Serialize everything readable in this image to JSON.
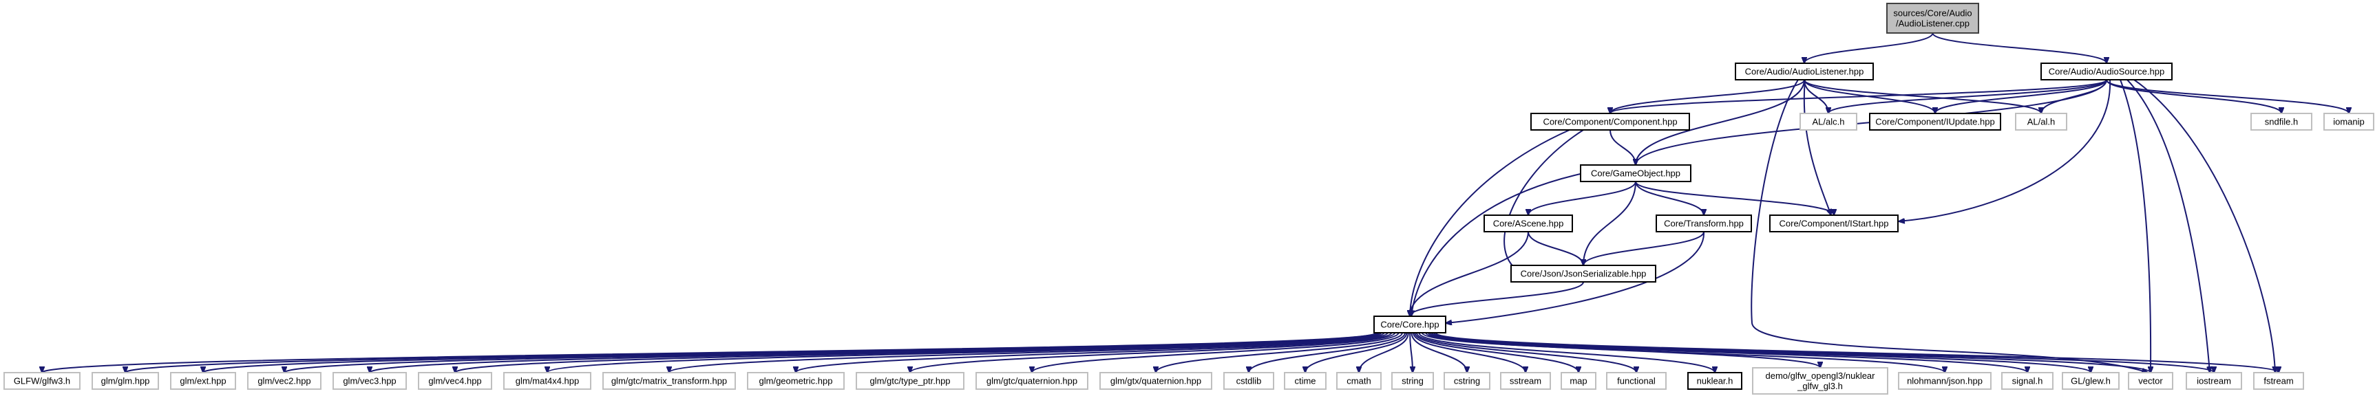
{
  "graph": {
    "nodes": [
      {
        "id": "root",
        "lines": [
          "sources/Core/Audio",
          "/AudioListener.cpp"
        ],
        "style": "root"
      },
      {
        "id": "listener_hpp",
        "lines": [
          "Core/Audio/AudioListener.hpp"
        ],
        "style": "linked"
      },
      {
        "id": "source_hpp",
        "lines": [
          "Core/Audio/AudioSource.hpp"
        ],
        "style": "linked"
      },
      {
        "id": "component_hpp",
        "lines": [
          "Core/Component/Component.hpp"
        ],
        "style": "linked"
      },
      {
        "id": "alc_h",
        "lines": [
          "AL/alc.h"
        ],
        "style": "external"
      },
      {
        "id": "iupdate_hpp",
        "lines": [
          "Core/Component/IUpdate.hpp"
        ],
        "style": "linked"
      },
      {
        "id": "al_h",
        "lines": [
          "AL/al.h"
        ],
        "style": "external"
      },
      {
        "id": "sndfile_h",
        "lines": [
          "sndfile.h"
        ],
        "style": "external"
      },
      {
        "id": "iomanip",
        "lines": [
          "iomanip"
        ],
        "style": "external"
      },
      {
        "id": "gameobject_hpp",
        "lines": [
          "Core/GameObject.hpp"
        ],
        "style": "linked"
      },
      {
        "id": "ascene_hpp",
        "lines": [
          "Core/AScene.hpp"
        ],
        "style": "linked"
      },
      {
        "id": "transform_hpp",
        "lines": [
          "Core/Transform.hpp"
        ],
        "style": "linked"
      },
      {
        "id": "istart_hpp",
        "lines": [
          "Core/Component/IStart.hpp"
        ],
        "style": "linked"
      },
      {
        "id": "json_hpp",
        "lines": [
          "Core/Json/JsonSerializable.hpp"
        ],
        "style": "linked"
      },
      {
        "id": "core_hpp",
        "lines": [
          "Core/Core.hpp"
        ],
        "style": "linked"
      },
      {
        "id": "glfw3_h",
        "lines": [
          "GLFW/glfw3.h"
        ],
        "style": "external"
      },
      {
        "id": "glm_hpp",
        "lines": [
          "glm/glm.hpp"
        ],
        "style": "external"
      },
      {
        "id": "glm_ext",
        "lines": [
          "glm/ext.hpp"
        ],
        "style": "external"
      },
      {
        "id": "glm_vec2",
        "lines": [
          "glm/vec2.hpp"
        ],
        "style": "external"
      },
      {
        "id": "glm_vec3",
        "lines": [
          "glm/vec3.hpp"
        ],
        "style": "external"
      },
      {
        "id": "glm_vec4",
        "lines": [
          "glm/vec4.hpp"
        ],
        "style": "external"
      },
      {
        "id": "glm_mat4x4",
        "lines": [
          "glm/mat4x4.hpp"
        ],
        "style": "external"
      },
      {
        "id": "glm_gtc_mt",
        "lines": [
          "glm/gtc/matrix_transform.hpp"
        ],
        "style": "external"
      },
      {
        "id": "glm_geometric",
        "lines": [
          "glm/geometric.hpp"
        ],
        "style": "external"
      },
      {
        "id": "glm_gtc_tp",
        "lines": [
          "glm/gtc/type_ptr.hpp"
        ],
        "style": "external"
      },
      {
        "id": "glm_gtc_q",
        "lines": [
          "glm/gtc/quaternion.hpp"
        ],
        "style": "external"
      },
      {
        "id": "glm_gtx_q",
        "lines": [
          "glm/gtx/quaternion.hpp"
        ],
        "style": "external"
      },
      {
        "id": "cstdlib",
        "lines": [
          "cstdlib"
        ],
        "style": "external"
      },
      {
        "id": "ctime",
        "lines": [
          "ctime"
        ],
        "style": "external"
      },
      {
        "id": "cmath",
        "lines": [
          "cmath"
        ],
        "style": "external"
      },
      {
        "id": "string",
        "lines": [
          "string"
        ],
        "style": "external"
      },
      {
        "id": "cstring",
        "lines": [
          "cstring"
        ],
        "style": "external"
      },
      {
        "id": "sstream",
        "lines": [
          "sstream"
        ],
        "style": "external"
      },
      {
        "id": "map",
        "lines": [
          "map"
        ],
        "style": "external"
      },
      {
        "id": "functional",
        "lines": [
          "functional"
        ],
        "style": "external"
      },
      {
        "id": "nuklear_h",
        "lines": [
          "nuklear.h"
        ],
        "style": "linked"
      },
      {
        "id": "nuklear_glfw",
        "lines": [
          "demo/glfw_opengl3/nuklear",
          "_glfw_gl3.h"
        ],
        "style": "external"
      },
      {
        "id": "nlohmann",
        "lines": [
          "nlohmann/json.hpp"
        ],
        "style": "external"
      },
      {
        "id": "signal_h",
        "lines": [
          "signal.h"
        ],
        "style": "external"
      },
      {
        "id": "glew_h",
        "lines": [
          "GL/glew.h"
        ],
        "style": "external"
      },
      {
        "id": "vector",
        "lines": [
          "vector"
        ],
        "style": "external"
      },
      {
        "id": "iostream",
        "lines": [
          "iostream"
        ],
        "style": "external"
      },
      {
        "id": "fstream",
        "lines": [
          "fstream"
        ],
        "style": "external"
      }
    ],
    "edges": [
      [
        "root",
        "listener_hpp"
      ],
      [
        "root",
        "source_hpp"
      ],
      [
        "listener_hpp",
        "component_hpp"
      ],
      [
        "listener_hpp",
        "alc_h"
      ],
      [
        "listener_hpp",
        "iupdate_hpp"
      ],
      [
        "listener_hpp",
        "al_h"
      ],
      [
        "listener_hpp",
        "gameobject_hpp"
      ],
      [
        "listener_hpp",
        "istart_hpp"
      ],
      [
        "listener_hpp",
        "vector"
      ],
      [
        "source_hpp",
        "component_hpp"
      ],
      [
        "source_hpp",
        "alc_h"
      ],
      [
        "source_hpp",
        "iupdate_hpp"
      ],
      [
        "source_hpp",
        "al_h"
      ],
      [
        "source_hpp",
        "sndfile_h"
      ],
      [
        "source_hpp",
        "iomanip"
      ],
      [
        "source_hpp",
        "gameobject_hpp"
      ],
      [
        "source_hpp",
        "istart_hpp"
      ],
      [
        "source_hpp",
        "vector"
      ],
      [
        "source_hpp",
        "iostream"
      ],
      [
        "source_hpp",
        "fstream"
      ],
      [
        "component_hpp",
        "gameobject_hpp"
      ],
      [
        "component_hpp",
        "json_hpp"
      ],
      [
        "component_hpp",
        "core_hpp"
      ],
      [
        "gameobject_hpp",
        "ascene_hpp"
      ],
      [
        "gameobject_hpp",
        "transform_hpp"
      ],
      [
        "gameobject_hpp",
        "istart_hpp"
      ],
      [
        "gameobject_hpp",
        "json_hpp"
      ],
      [
        "gameobject_hpp",
        "core_hpp"
      ],
      [
        "ascene_hpp",
        "json_hpp"
      ],
      [
        "ascene_hpp",
        "core_hpp"
      ],
      [
        "transform_hpp",
        "json_hpp"
      ],
      [
        "transform_hpp",
        "core_hpp"
      ],
      [
        "json_hpp",
        "core_hpp"
      ],
      [
        "core_hpp",
        "glfw3_h"
      ],
      [
        "core_hpp",
        "glm_hpp"
      ],
      [
        "core_hpp",
        "glm_ext"
      ],
      [
        "core_hpp",
        "glm_vec2"
      ],
      [
        "core_hpp",
        "glm_vec3"
      ],
      [
        "core_hpp",
        "glm_vec4"
      ],
      [
        "core_hpp",
        "glm_mat4x4"
      ],
      [
        "core_hpp",
        "glm_gtc_mt"
      ],
      [
        "core_hpp",
        "glm_geometric"
      ],
      [
        "core_hpp",
        "glm_gtc_tp"
      ],
      [
        "core_hpp",
        "glm_gtc_q"
      ],
      [
        "core_hpp",
        "glm_gtx_q"
      ],
      [
        "core_hpp",
        "cstdlib"
      ],
      [
        "core_hpp",
        "ctime"
      ],
      [
        "core_hpp",
        "cmath"
      ],
      [
        "core_hpp",
        "string"
      ],
      [
        "core_hpp",
        "cstring"
      ],
      [
        "core_hpp",
        "sstream"
      ],
      [
        "core_hpp",
        "map"
      ],
      [
        "core_hpp",
        "functional"
      ],
      [
        "core_hpp",
        "nuklear_h"
      ],
      [
        "core_hpp",
        "nuklear_glfw"
      ],
      [
        "core_hpp",
        "nlohmann"
      ],
      [
        "core_hpp",
        "signal_h"
      ],
      [
        "core_hpp",
        "glew_h"
      ],
      [
        "core_hpp",
        "vector"
      ],
      [
        "core_hpp",
        "iostream"
      ],
      [
        "core_hpp",
        "fstream"
      ]
    ]
  },
  "colors": {
    "edge": "#191970",
    "root_fill": "#bfbfbf",
    "root_border": "#404040",
    "linked_border": "#000000",
    "external_border": "#bfbfbf",
    "node_fill": "#ffffff"
  }
}
